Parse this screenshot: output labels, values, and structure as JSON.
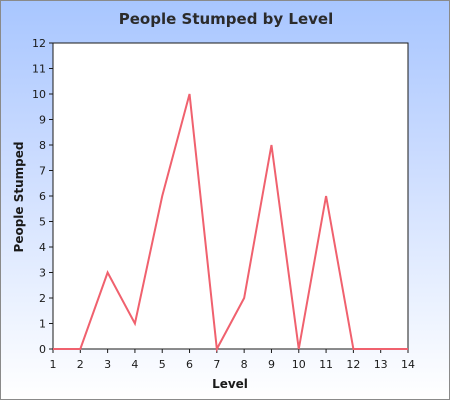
{
  "chart_data": {
    "type": "line",
    "title": "People Stumped by Level",
    "xlabel": "Level",
    "ylabel": "People Stumped",
    "x": [
      1,
      2,
      3,
      4,
      5,
      6,
      7,
      8,
      9,
      10,
      11,
      12,
      13,
      14
    ],
    "series": [
      {
        "values": [
          0,
          0,
          3,
          1,
          6,
          10,
          0,
          2,
          8,
          0,
          6,
          0,
          0,
          0
        ]
      }
    ],
    "xlim": [
      1,
      14
    ],
    "ylim": [
      0,
      12
    ],
    "yticks": [
      0,
      1,
      2,
      3,
      4,
      5,
      6,
      7,
      8,
      9,
      10,
      11,
      12
    ],
    "grid": false,
    "line_color": "#f0616e",
    "plot_background": "#ffffff"
  }
}
